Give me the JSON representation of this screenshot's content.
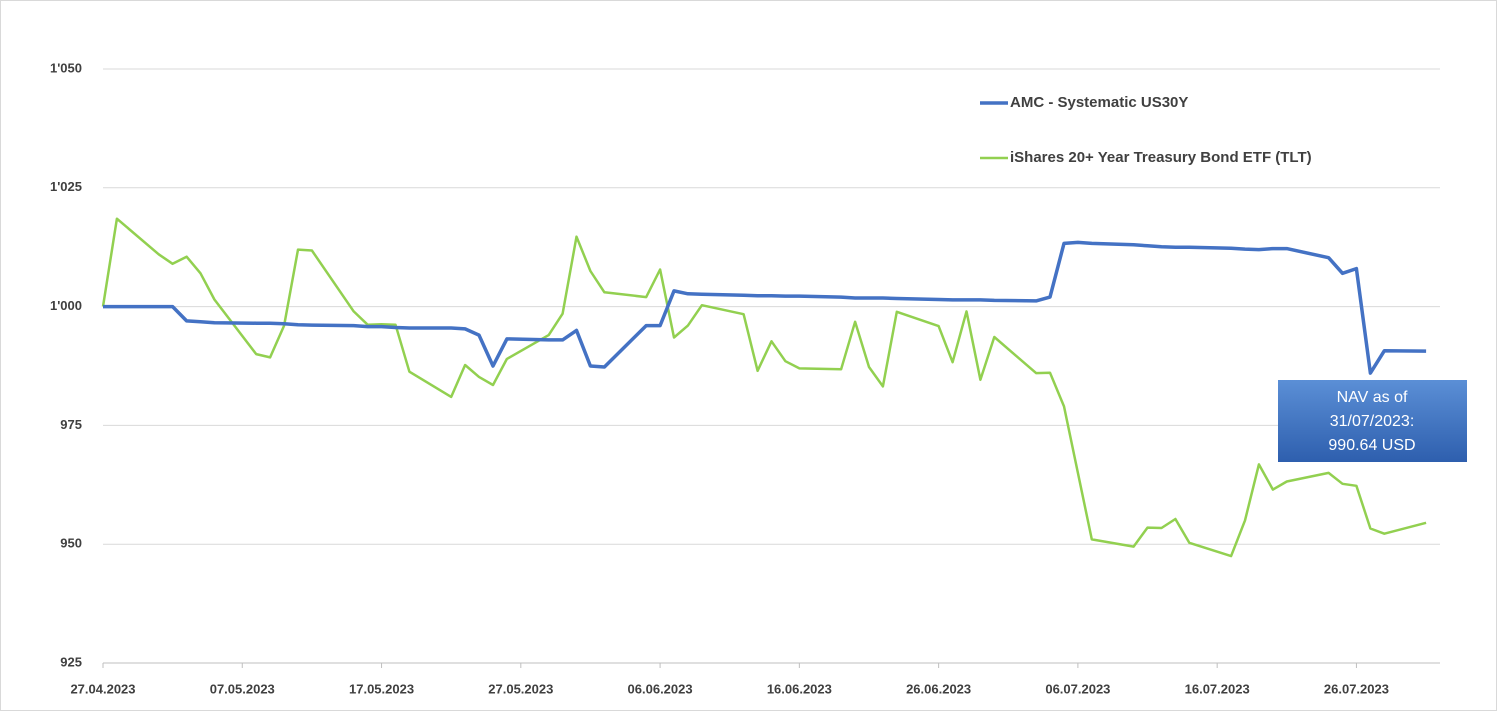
{
  "chart_data": {
    "type": "line",
    "x": [
      "27.04.2023",
      "28.04.2023",
      "01.05.2023",
      "02.05.2023",
      "03.05.2023",
      "04.05.2023",
      "05.05.2023",
      "08.05.2023",
      "09.05.2023",
      "10.05.2023",
      "11.05.2023",
      "12.05.2023",
      "15.05.2023",
      "16.05.2023",
      "17.05.2023",
      "18.05.2023",
      "19.05.2023",
      "22.05.2023",
      "23.05.2023",
      "24.05.2023",
      "25.05.2023",
      "26.05.2023",
      "29.05.2023",
      "30.05.2023",
      "31.05.2023",
      "01.06.2023",
      "02.06.2023",
      "05.06.2023",
      "06.06.2023",
      "07.06.2023",
      "08.06.2023",
      "09.06.2023",
      "12.06.2023",
      "13.06.2023",
      "14.06.2023",
      "15.06.2023",
      "16.06.2023",
      "19.06.2023",
      "20.06.2023",
      "21.06.2023",
      "22.06.2023",
      "23.06.2023",
      "26.06.2023",
      "27.06.2023",
      "28.06.2023",
      "29.06.2023",
      "30.06.2023",
      "03.07.2023",
      "04.07.2023",
      "05.07.2023",
      "06.07.2023",
      "07.07.2023",
      "10.07.2023",
      "11.07.2023",
      "12.07.2023",
      "13.07.2023",
      "14.07.2023",
      "17.07.2023",
      "18.07.2023",
      "19.07.2023",
      "20.07.2023",
      "21.07.2023",
      "24.07.2023",
      "25.07.2023",
      "26.07.2023",
      "27.07.2023",
      "28.07.2023",
      "31.07.2023"
    ],
    "series": [
      {
        "name": "AMC - Systematic US30Y",
        "color": "#4472c4",
        "width": 3.5,
        "values": [
          1000,
          1000,
          1000,
          1000,
          997,
          996.8,
          996.6,
          996.5,
          996.5,
          996.4,
          996.2,
          996.1,
          996,
          995.8,
          995.8,
          995.6,
          995.5,
          995.5,
          995.3,
          994,
          987.5,
          993.2,
          993,
          993,
          995,
          987.5,
          987.3,
          996,
          996,
          1003.3,
          1002.7,
          1002.6,
          1002.4,
          1002.3,
          1002.3,
          1002.2,
          1002.2,
          1002,
          1001.8,
          1001.8,
          1001.8,
          1001.7,
          1001.5,
          1001.4,
          1001.4,
          1001.4,
          1001.3,
          1001.2,
          1002,
          1013.3,
          1013.5,
          1013.3,
          1013,
          1012.8,
          1012.6,
          1012.5,
          1012.5,
          1012.3,
          1012.1,
          1012,
          1012.2,
          1012.2,
          1010.3,
          1007,
          1008,
          986,
          990.7,
          990.64
        ]
      },
      {
        "name": "iShares 20+ Year Treasury Bond ETF (TLT)",
        "color": "#92d050",
        "width": 2.5,
        "values": [
          1000,
          1018.5,
          1011,
          1009,
          1010.5,
          1007,
          1001.5,
          990,
          989.3,
          996,
          1012,
          1011.8,
          999,
          996.2,
          996.3,
          996.2,
          986.3,
          981,
          987.7,
          985.2,
          983.5,
          989,
          994,
          998.5,
          1014.7,
          1007.5,
          1003,
          1002,
          1007.8,
          993.5,
          996,
          1000.3,
          998.4,
          986.5,
          992.7,
          988.5,
          987,
          986.8,
          996.8,
          987.3,
          983.2,
          998.9,
          995.9,
          988.3,
          999,
          984.6,
          993.6,
          986,
          986.1,
          979,
          965,
          951,
          949.5,
          953.5,
          953.4,
          955.3,
          950.3,
          947.5,
          955,
          966.8,
          961.5,
          963.2,
          965,
          962.7,
          962.3,
          953.3,
          952.2,
          954.5
        ]
      }
    ],
    "xlim": [
      "27.04.2023",
      "01.08.2023"
    ],
    "xticks": [
      "27.04.2023",
      "07.05.2023",
      "17.05.2023",
      "27.05.2023",
      "06.06.2023",
      "16.06.2023",
      "26.06.2023",
      "06.07.2023",
      "16.07.2023",
      "26.07.2023"
    ],
    "ylim": [
      925,
      1062.5
    ],
    "yticks": [
      925,
      950,
      975,
      {
        "value": 1000,
        "label": "1'000"
      },
      {
        "value": 1025,
        "label": "1'025"
      },
      {
        "value": 1050,
        "label": "1'050"
      }
    ],
    "grid": true,
    "legend": "upper right",
    "annotation": [
      "NAV as of",
      "31/07/2023:",
      "990.64 USD"
    ]
  }
}
